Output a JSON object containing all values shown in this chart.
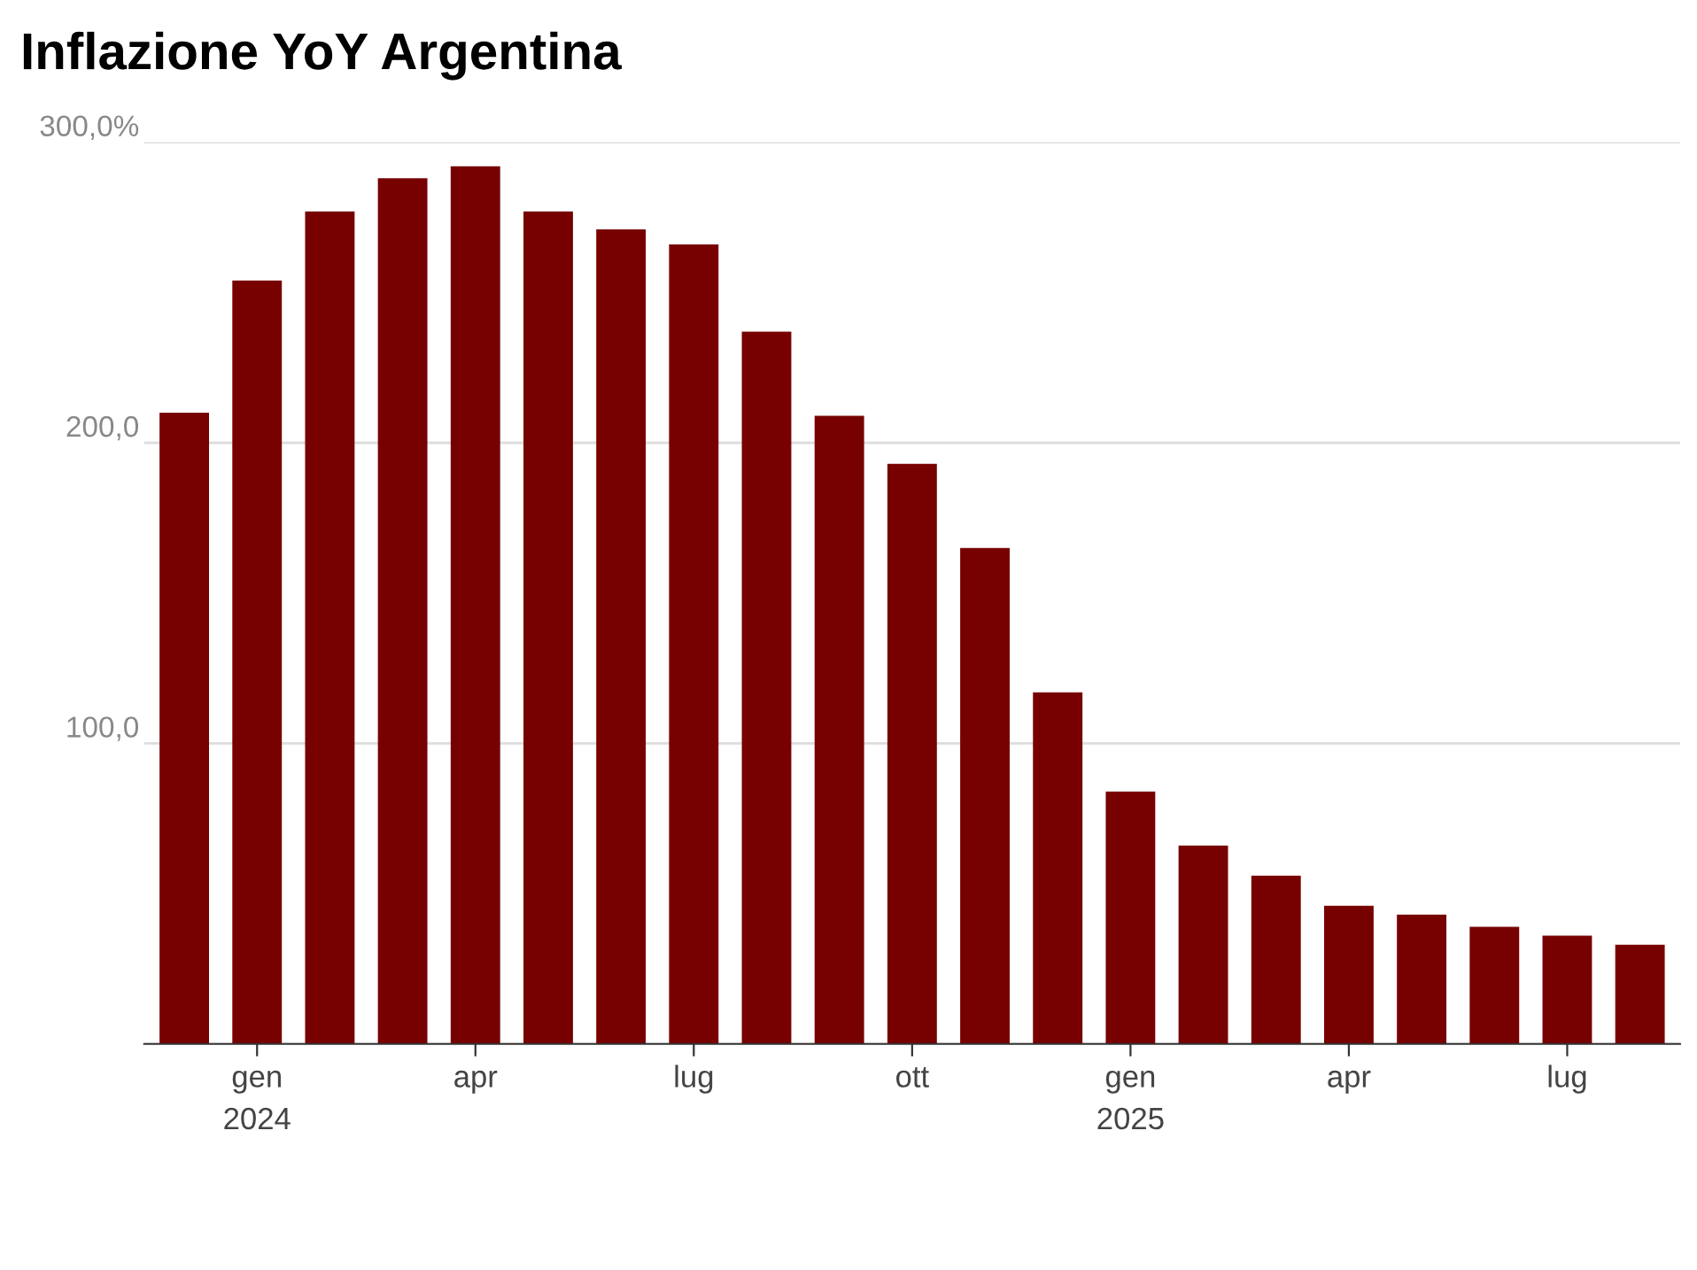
{
  "chart_data": {
    "type": "bar",
    "title": "Inflazione YoY Argentina",
    "categories": [
      null,
      "gen\n2024",
      null,
      null,
      "apr",
      null,
      null,
      "lug",
      null,
      null,
      "ott",
      null,
      null,
      "gen\n2025",
      null,
      null,
      "apr",
      null,
      null,
      "lug",
      null
    ],
    "values": [
      210,
      254,
      277,
      288,
      292,
      277,
      271,
      266,
      237,
      209,
      193,
      165,
      117,
      84,
      66,
      56,
      46,
      43,
      39,
      36,
      33
    ],
    "color": "#770000",
    "ylim": [
      0,
      300
    ],
    "yticks": [
      {
        "value": 0,
        "label": null
      },
      {
        "value": 100,
        "label": "100,0"
      },
      {
        "value": 200,
        "label": "200,0"
      },
      {
        "value": 300,
        "label": "300,0%"
      }
    ],
    "grid": "y",
    "legend": false
  }
}
